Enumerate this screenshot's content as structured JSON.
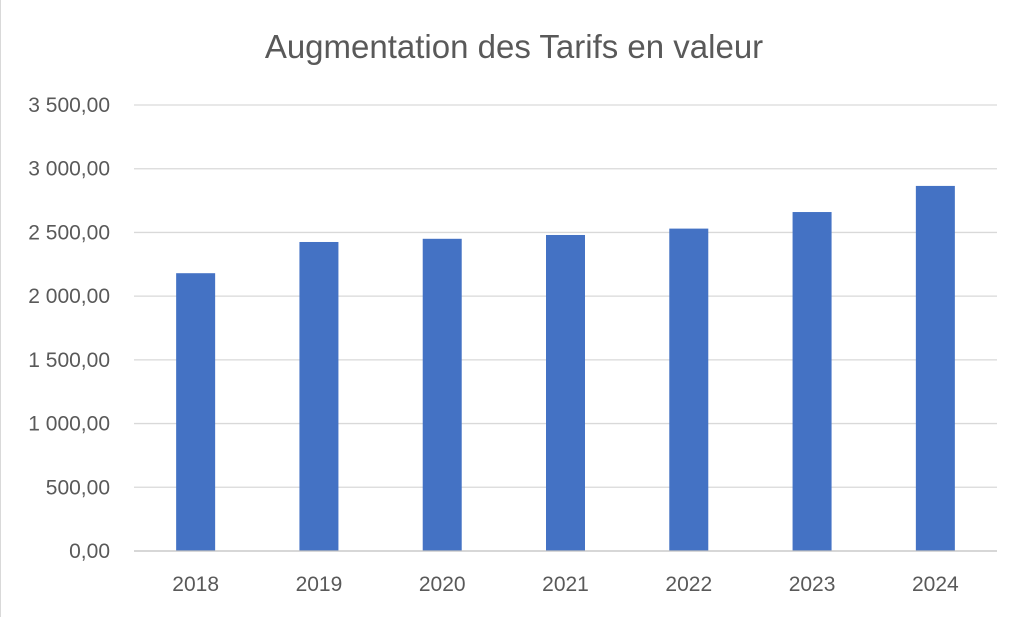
{
  "chart_data": {
    "type": "bar",
    "title": "Augmentation des Tarifs en valeur",
    "xlabel": "",
    "ylabel": "",
    "categories": [
      "2018",
      "2019",
      "2020",
      "2021",
      "2022",
      "2023",
      "2024"
    ],
    "values": [
      2180,
      2425,
      2450,
      2480,
      2530,
      2660,
      2865
    ],
    "ylim": [
      0,
      3500
    ],
    "yticks": [
      0,
      500,
      1000,
      1500,
      2000,
      2500,
      3000,
      3500
    ],
    "ytick_labels": [
      "0,00",
      "500,00",
      "1 000,00",
      "1 500,00",
      "2 000,00",
      "2 500,00",
      "3 000,00",
      "3 500,00"
    ],
    "bar_color": "#4472c4",
    "grid": true,
    "legend": "none"
  }
}
